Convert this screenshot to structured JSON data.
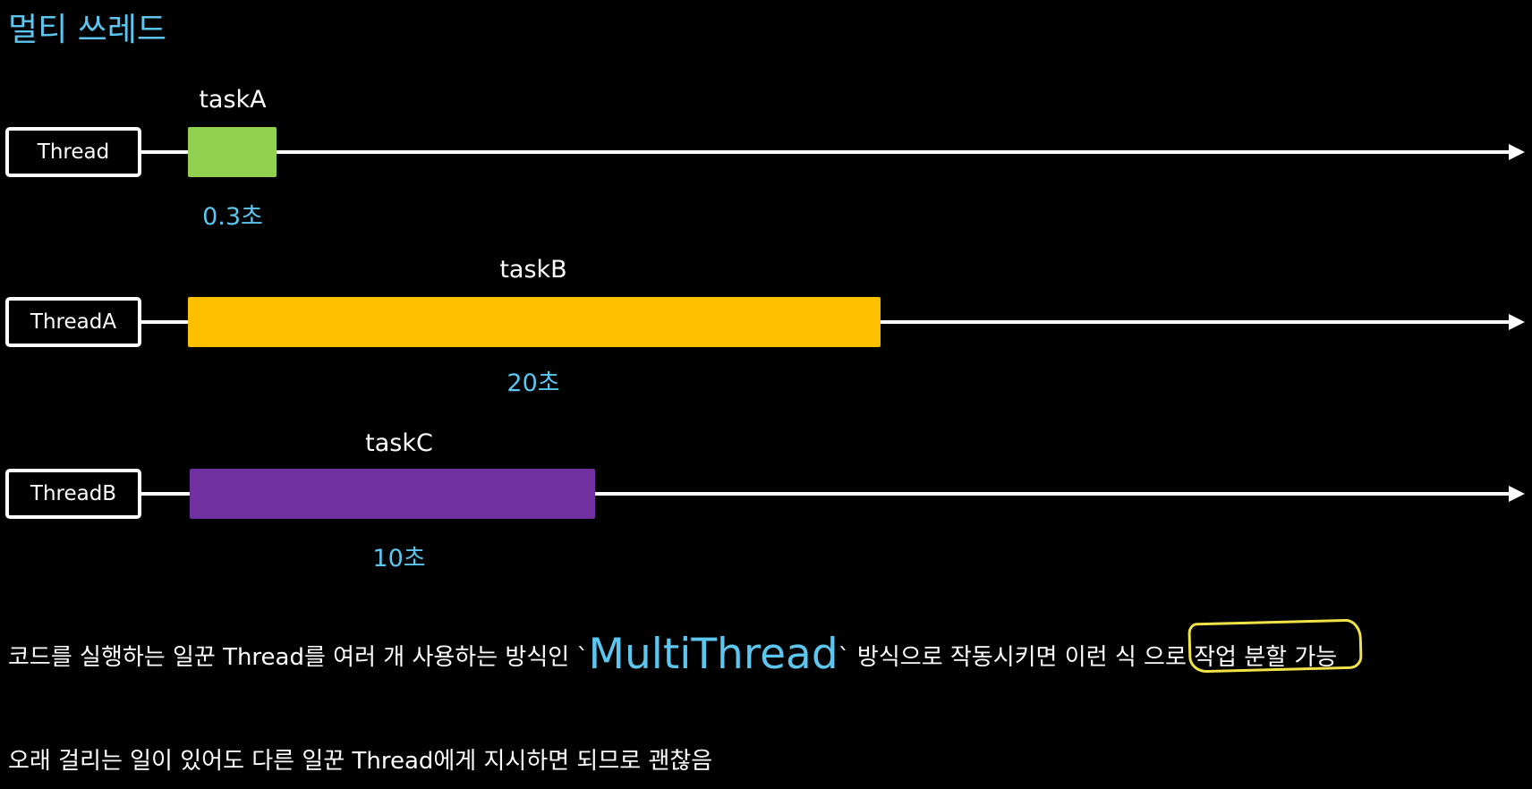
{
  "title": "멀티 쓰레드",
  "lanes": [
    {
      "thread": "Thread",
      "task": "taskA",
      "duration": "0.3초",
      "color": "#92d050"
    },
    {
      "thread": "ThreadA",
      "task": "taskB",
      "duration": "20초",
      "color": "#ffc000"
    },
    {
      "thread": "ThreadB",
      "task": "taskC",
      "duration": "10초",
      "color": "#7030a0"
    }
  ],
  "caption1": {
    "before": "코드를 실행하는 일꾼 Thread를 여러 개 사용하는 방식인 ",
    "tick_open": "`",
    "highlight": "MultiThread",
    "tick_close": "`",
    "after": " 방식으로 작동시키면 이런 식 으로 ",
    "circled": "작업 분할 가능"
  },
  "caption2": "오래 걸리는 일이 있어도 다른 일꾼 Thread에게 지시하면 되므로 괜찮음",
  "colors": {
    "accent": "#5cc6ef",
    "annotation": "#f2e24a"
  }
}
